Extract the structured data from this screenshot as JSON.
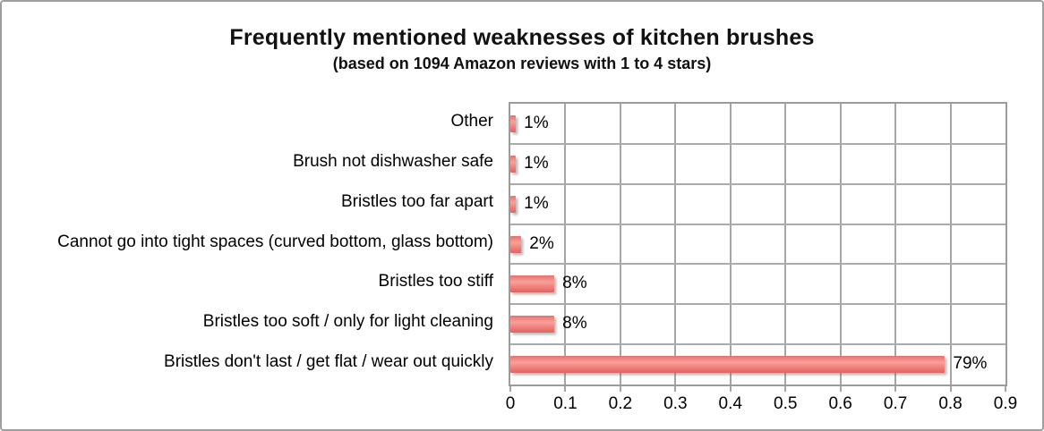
{
  "chart_data": {
    "type": "bar",
    "orientation": "horizontal",
    "title": "Frequently mentioned weaknesses of kitchen brushes",
    "subtitle": "(based on 1094 Amazon reviews with 1 to 4 stars)",
    "categories": [
      "Other",
      "Brush not dishwasher safe",
      "Bristles too far apart",
      "Cannot go into tight spaces (curved bottom, glass bottom)",
      "Bristles too stiff",
      "Bristles too soft / only for light cleaning",
      "Bristles don't last / get flat / wear out quickly"
    ],
    "values": [
      0.01,
      0.01,
      0.01,
      0.02,
      0.08,
      0.08,
      0.79
    ],
    "value_labels": [
      "1%",
      "1%",
      "1%",
      "2%",
      "8%",
      "8%",
      "79%"
    ],
    "xlabel": "",
    "ylabel": "",
    "xlim": [
      0,
      0.9
    ],
    "xticks": [
      0,
      0.1,
      0.2,
      0.3,
      0.4,
      0.5,
      0.6,
      0.7,
      0.8,
      0.9
    ],
    "xtick_labels": [
      "0",
      "0.1",
      "0.2",
      "0.3",
      "0.4",
      "0.5",
      "0.6",
      "0.7",
      "0.8",
      "0.9"
    ],
    "grid": true,
    "legend": false,
    "colors": {
      "bar": "#ed7a76",
      "bar_highlight": "#f9a09b",
      "bar_edge": "#de6561",
      "gridline": "#a6a6a6",
      "plot_border": "#9b9b9b",
      "text": "#000000",
      "frame_border": "#9e9e9e",
      "background": "#ffffff"
    }
  }
}
